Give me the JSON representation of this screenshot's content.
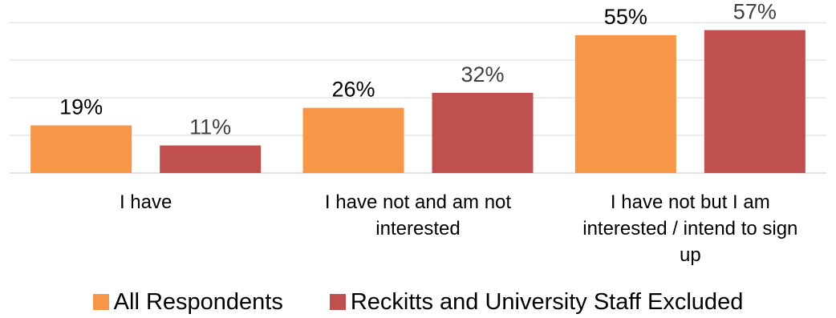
{
  "chart_data": {
    "type": "bar",
    "categories": [
      "I have",
      "I have not and am not interested",
      "I have not but I am interested / intend to sign up"
    ],
    "category_lines": [
      [
        "I have"
      ],
      [
        "I have not and am not",
        "interested"
      ],
      [
        "I have not but I am",
        "interested / intend to sign",
        "up"
      ]
    ],
    "series": [
      {
        "name": "All Respondents",
        "values": [
          19,
          26,
          55
        ],
        "labels": [
          "19%",
          "26%",
          "55%"
        ],
        "color": "#F79646"
      },
      {
        "name": "Reckitts and University Staff Excluded",
        "values": [
          11,
          32,
          57
        ],
        "labels": [
          "11%",
          "32%",
          "57%"
        ],
        "color": "#C0504D"
      }
    ],
    "ylim": [
      0,
      60
    ],
    "grid": true,
    "legend_position": "bottom"
  }
}
